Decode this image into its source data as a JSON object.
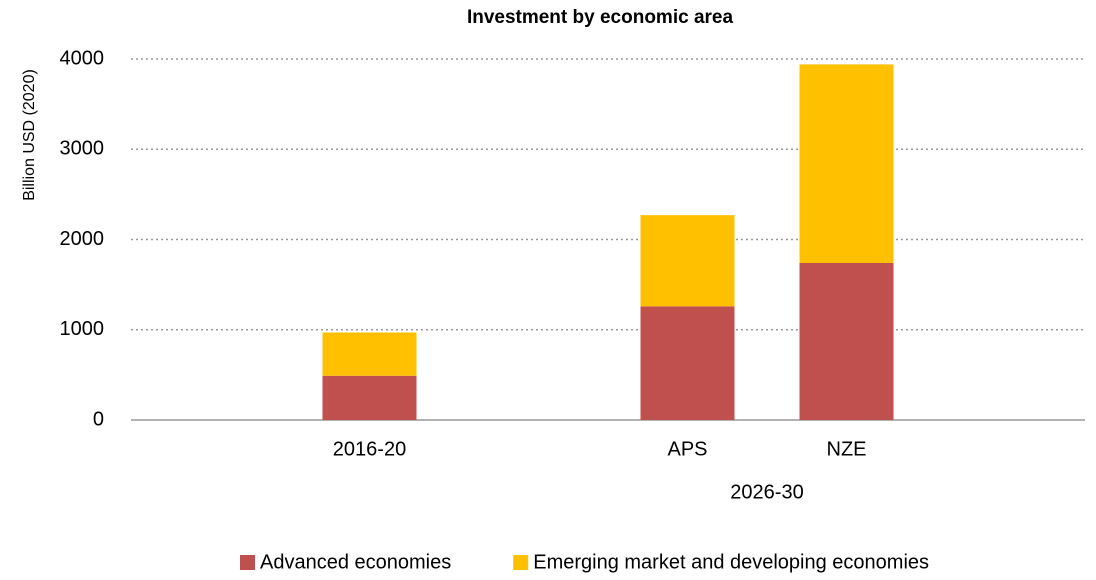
{
  "chart_data": {
    "type": "stacked_bar",
    "title": "Investment by economic area",
    "y_label": "Billion USD (2020)",
    "categories": [
      null,
      "2016-20",
      null,
      "APS",
      "NZE",
      null
    ],
    "category_groups": [
      {
        "label": "2026-30",
        "members": [
          "APS",
          "NZE"
        ]
      }
    ],
    "series": [
      {
        "name": "Advanced economies",
        "color": "#c0504d",
        "values": [
          null,
          490,
          null,
          1260,
          1740,
          null
        ]
      },
      {
        "name": "Emerging market and developing economies",
        "color": "#ffc000",
        "values": [
          null,
          480,
          null,
          1010,
          2200,
          null
        ]
      }
    ],
    "ylim": [
      0,
      4000
    ],
    "yticks": [
      0,
      1000,
      2000,
      3000,
      4000
    ],
    "grid": true,
    "legend": "bottom"
  }
}
